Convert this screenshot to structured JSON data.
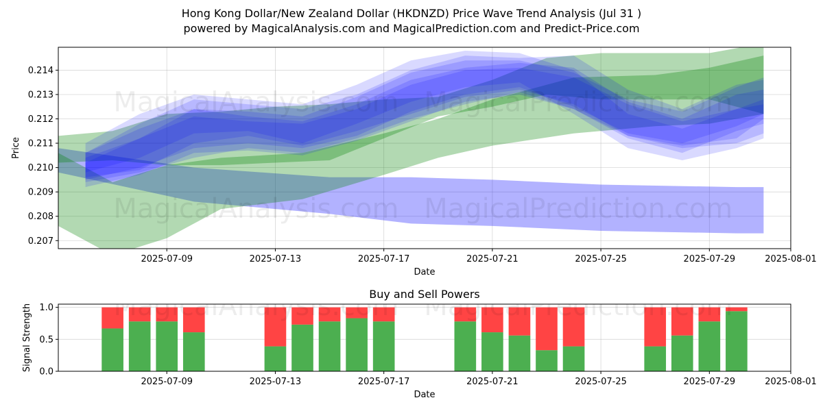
{
  "title_line1": "Hong Kong Dollar/New Zealand Dollar (HKDNZD) Price Wave Trend Analysis (Jul 31 )",
  "title_line2": "powered by MagicalAnalysis.com and MagicalPrediction.com and Predict-Price.com",
  "watermarks": [
    "MagicalAnalysis.com",
    "MagicalPrediction.com"
  ],
  "colors": {
    "blue_band": "#0000ff",
    "green_band": "#008000",
    "buy": "#4caf50",
    "sell": "#ff4444",
    "grid": "#b0b0b0"
  },
  "chart_data": [
    {
      "type": "area",
      "title": "",
      "xlabel": "Date",
      "ylabel": "Price",
      "xlim": [
        "2025-07-05",
        "2025-08-01"
      ],
      "ylim": [
        0.20667,
        0.21494
      ],
      "x_ticks": [
        "2025-07-09",
        "2025-07-13",
        "2025-07-17",
        "2025-07-21",
        "2025-07-25",
        "2025-07-29",
        "2025-08-01"
      ],
      "y_ticks": [
        0.207,
        0.208,
        0.209,
        0.21,
        0.211,
        0.212,
        0.213,
        0.214
      ],
      "grid": true,
      "series": [
        {
          "color": "blue",
          "opacity": 0.3,
          "points": [
            [
              "2025-07-05",
              0.2098,
              0.2108
            ],
            [
              "2025-07-10",
              0.2086,
              0.21
            ],
            [
              "2025-07-15",
              0.2081,
              0.2096
            ],
            [
              "2025-07-18",
              0.2077,
              0.2096
            ],
            [
              "2025-07-21",
              0.2076,
              0.2095
            ],
            [
              "2025-07-25",
              0.2074,
              0.2093
            ],
            [
              "2025-07-30",
              0.2073,
              0.2092
            ],
            [
              "2025-07-31",
              0.2073,
              0.2092
            ]
          ]
        },
        {
          "color": "green",
          "opacity": 0.3,
          "points": [
            [
              "2025-07-05",
              0.2076,
              0.2106
            ],
            [
              "2025-07-07",
              0.2064,
              0.2094
            ],
            [
              "2025-07-09",
              0.2071,
              0.2101
            ],
            [
              "2025-07-11",
              0.2083,
              0.2104
            ],
            [
              "2025-07-14",
              0.2087,
              0.2106
            ],
            [
              "2025-07-17",
              0.2097,
              0.2114
            ],
            [
              "2025-07-19",
              0.2104,
              0.212
            ],
            [
              "2025-07-21",
              0.2109,
              0.2128
            ],
            [
              "2025-07-24",
              0.2114,
              0.2137
            ],
            [
              "2025-07-27",
              0.2117,
              0.2138
            ],
            [
              "2025-07-29",
              0.2118,
              0.2141
            ],
            [
              "2025-07-31",
              0.2122,
              0.2146
            ]
          ]
        },
        {
          "color": "green",
          "opacity": 0.3,
          "points": [
            [
              "2025-07-05",
              0.2102,
              0.2113
            ],
            [
              "2025-07-07",
              0.2103,
              0.2115
            ],
            [
              "2025-07-09",
              0.2101,
              0.2122
            ],
            [
              "2025-07-11",
              0.2101,
              0.2123
            ],
            [
              "2025-07-13",
              0.2102,
              0.2125
            ],
            [
              "2025-07-15",
              0.2103,
              0.2126
            ],
            [
              "2025-07-17",
              0.2112,
              0.2128
            ],
            [
              "2025-07-19",
              0.2121,
              0.2129
            ],
            [
              "2025-07-21",
              0.2125,
              0.2136
            ],
            [
              "2025-07-23",
              0.213,
              0.2145
            ],
            [
              "2025-07-25",
              0.2128,
              0.2147
            ],
            [
              "2025-07-27",
              0.2128,
              0.2147
            ],
            [
              "2025-07-29",
              0.2128,
              0.2147
            ],
            [
              "2025-07-31",
              0.2122,
              0.2151
            ]
          ]
        },
        {
          "color": "blue",
          "opacity": 0.15,
          "points": [
            [
              "2025-07-06",
              0.2096,
              0.2106
            ],
            [
              "2025-07-08",
              0.2099,
              0.2118
            ],
            [
              "2025-07-10",
              0.211,
              0.2128
            ],
            [
              "2025-07-12",
              0.2113,
              0.2126
            ],
            [
              "2025-07-14",
              0.2109,
              0.2124
            ],
            [
              "2025-07-16",
              0.2115,
              0.213
            ],
            [
              "2025-07-18",
              0.2122,
              0.214
            ],
            [
              "2025-07-20",
              0.2129,
              0.2146
            ],
            [
              "2025-07-22",
              0.2132,
              0.2145
            ],
            [
              "2025-07-24",
              0.2126,
              0.2146
            ],
            [
              "2025-07-26",
              0.2113,
              0.2132
            ],
            [
              "2025-07-28",
              0.2109,
              0.2124
            ],
            [
              "2025-07-30",
              0.2112,
              0.2134
            ],
            [
              "2025-07-31",
              0.212,
              0.2136
            ]
          ]
        },
        {
          "color": "blue",
          "opacity": 0.15,
          "points": [
            [
              "2025-07-06",
              0.2094,
              0.2104
            ],
            [
              "2025-07-08",
              0.2098,
              0.2112
            ],
            [
              "2025-07-10",
              0.2104,
              0.2124
            ],
            [
              "2025-07-12",
              0.2108,
              0.2121
            ],
            [
              "2025-07-14",
              0.2106,
              0.2119
            ],
            [
              "2025-07-16",
              0.2112,
              0.2126
            ],
            [
              "2025-07-18",
              0.212,
              0.2136
            ],
            [
              "2025-07-20",
              0.2126,
              0.2141
            ],
            [
              "2025-07-22",
              0.2131,
              0.2143
            ],
            [
              "2025-07-24",
              0.2124,
              0.2141
            ],
            [
              "2025-07-26",
              0.2112,
              0.2127
            ],
            [
              "2025-07-28",
              0.2106,
              0.212
            ],
            [
              "2025-07-30",
              0.2115,
              0.213
            ],
            [
              "2025-07-31",
              0.2118,
              0.2132
            ]
          ]
        },
        {
          "color": "blue",
          "opacity": 0.15,
          "points": [
            [
              "2025-07-06",
              0.2098,
              0.211
            ],
            [
              "2025-07-08",
              0.2104,
              0.2122
            ],
            [
              "2025-07-10",
              0.2114,
              0.213
            ],
            [
              "2025-07-12",
              0.2115,
              0.2128
            ],
            [
              "2025-07-14",
              0.211,
              0.2126
            ],
            [
              "2025-07-16",
              0.2118,
              0.2134
            ],
            [
              "2025-07-18",
              0.2127,
              0.2144
            ],
            [
              "2025-07-20",
              0.2133,
              0.2148
            ],
            [
              "2025-07-22",
              0.2135,
              0.2147
            ],
            [
              "2025-07-24",
              0.2122,
              0.214
            ],
            [
              "2025-07-26",
              0.2108,
              0.2122
            ],
            [
              "2025-07-28",
              0.2103,
              0.2116
            ],
            [
              "2025-07-30",
              0.2108,
              0.2124
            ],
            [
              "2025-07-31",
              0.2112,
              0.2126
            ]
          ]
        },
        {
          "color": "blue",
          "opacity": 0.15,
          "points": [
            [
              "2025-07-06",
              0.2095,
              0.2106
            ],
            [
              "2025-07-08",
              0.21,
              0.2116
            ],
            [
              "2025-07-10",
              0.2108,
              0.2124
            ],
            [
              "2025-07-12",
              0.211,
              0.2123
            ],
            [
              "2025-07-14",
              0.2108,
              0.2121
            ],
            [
              "2025-07-16",
              0.2113,
              0.2129
            ],
            [
              "2025-07-18",
              0.2123,
              0.2139
            ],
            [
              "2025-07-20",
              0.213,
              0.2144
            ],
            [
              "2025-07-22",
              0.2133,
              0.2144
            ],
            [
              "2025-07-24",
              0.2125,
              0.2139
            ],
            [
              "2025-07-26",
              0.2114,
              0.2128
            ],
            [
              "2025-07-28",
              0.211,
              0.2123
            ],
            [
              "2025-07-30",
              0.2117,
              0.2133
            ],
            [
              "2025-07-31",
              0.2122,
              0.2137
            ]
          ]
        },
        {
          "color": "blue",
          "opacity": 0.15,
          "points": [
            [
              "2025-07-06",
              0.2092,
              0.2102
            ],
            [
              "2025-07-08",
              0.2097,
              0.2112
            ],
            [
              "2025-07-10",
              0.2106,
              0.2121
            ],
            [
              "2025-07-12",
              0.2107,
              0.2119
            ],
            [
              "2025-07-14",
              0.2105,
              0.2118
            ],
            [
              "2025-07-16",
              0.2111,
              0.2124
            ],
            [
              "2025-07-18",
              0.2119,
              0.2134
            ],
            [
              "2025-07-20",
              0.2127,
              0.214
            ],
            [
              "2025-07-22",
              0.213,
              0.2141
            ],
            [
              "2025-07-24",
              0.2124,
              0.2137
            ],
            [
              "2025-07-26",
              0.2113,
              0.2126
            ],
            [
              "2025-07-28",
              0.2108,
              0.2119
            ],
            [
              "2025-07-30",
              0.211,
              0.2124
            ],
            [
              "2025-07-31",
              0.2114,
              0.2128
            ]
          ]
        }
      ]
    },
    {
      "type": "bar",
      "title": "Buy and Sell Powers",
      "xlabel": "Date",
      "ylabel": "Signal Strength",
      "xlim": [
        "2025-07-05",
        "2025-08-01"
      ],
      "ylim": [
        0,
        1.05
      ],
      "x_ticks": [
        "2025-07-09",
        "2025-07-13",
        "2025-07-17",
        "2025-07-21",
        "2025-07-25",
        "2025-07-29",
        "2025-08-01"
      ],
      "y_ticks": [
        0.0,
        0.5,
        1.0
      ],
      "grid": true,
      "bars": [
        {
          "date": "2025-07-07",
          "buy": 0.67
        },
        {
          "date": "2025-07-08",
          "buy": 0.78
        },
        {
          "date": "2025-07-09",
          "buy": 0.78
        },
        {
          "date": "2025-07-10",
          "buy": 0.61
        },
        {
          "date": "2025-07-13",
          "buy": 0.39
        },
        {
          "date": "2025-07-14",
          "buy": 0.73
        },
        {
          "date": "2025-07-15",
          "buy": 0.78
        },
        {
          "date": "2025-07-16",
          "buy": 0.83
        },
        {
          "date": "2025-07-17",
          "buy": 0.78
        },
        {
          "date": "2025-07-20",
          "buy": 0.78
        },
        {
          "date": "2025-07-21",
          "buy": 0.61
        },
        {
          "date": "2025-07-22",
          "buy": 0.56
        },
        {
          "date": "2025-07-23",
          "buy": 0.33
        },
        {
          "date": "2025-07-24",
          "buy": 0.39
        },
        {
          "date": "2025-07-27",
          "buy": 0.39
        },
        {
          "date": "2025-07-28",
          "buy": 0.56
        },
        {
          "date": "2025-07-29",
          "buy": 0.78
        },
        {
          "date": "2025-07-30",
          "buy": 0.94
        }
      ]
    }
  ]
}
